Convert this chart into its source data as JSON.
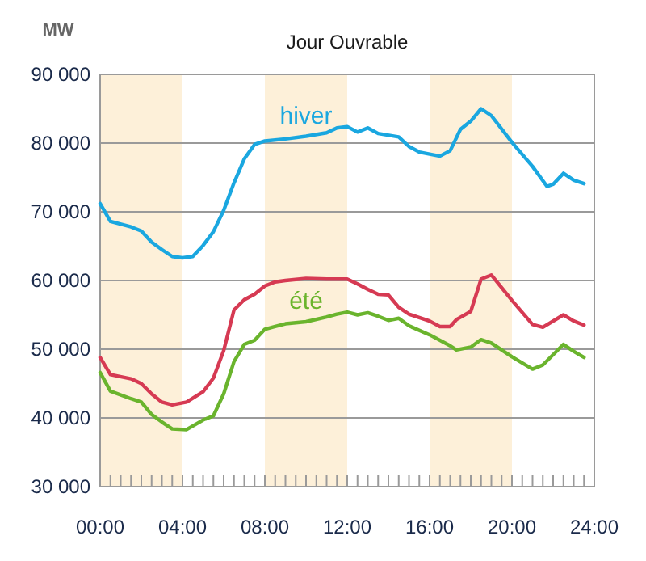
{
  "chart_data": {
    "type": "line",
    "title": "Jour Ouvrable",
    "ylabel": "MW",
    "xlim": [
      0,
      24
    ],
    "ylim": [
      30000,
      90000
    ],
    "xticks": [
      {
        "value": 0,
        "label": "00:00"
      },
      {
        "value": 0.5,
        "label": null
      },
      {
        "value": 1,
        "label": null
      },
      {
        "value": 1.5,
        "label": null
      },
      {
        "value": 2,
        "label": null
      },
      {
        "value": 2.5,
        "label": null
      },
      {
        "value": 3,
        "label": null
      },
      {
        "value": 3.5,
        "label": null
      },
      {
        "value": 4,
        "label": "04:00"
      },
      {
        "value": 4.5,
        "label": null
      },
      {
        "value": 5,
        "label": null
      },
      {
        "value": 5.5,
        "label": null
      },
      {
        "value": 6,
        "label": null
      },
      {
        "value": 6.5,
        "label": null
      },
      {
        "value": 7,
        "label": null
      },
      {
        "value": 7.5,
        "label": null
      },
      {
        "value": 8,
        "label": "08:00"
      },
      {
        "value": 8.5,
        "label": null
      },
      {
        "value": 9,
        "label": null
      },
      {
        "value": 9.5,
        "label": null
      },
      {
        "value": 10,
        "label": null
      },
      {
        "value": 10.5,
        "label": null
      },
      {
        "value": 11,
        "label": null
      },
      {
        "value": 11.5,
        "label": null
      },
      {
        "value": 12,
        "label": "12:00"
      },
      {
        "value": 12.5,
        "label": null
      },
      {
        "value": 13,
        "label": null
      },
      {
        "value": 13.5,
        "label": null
      },
      {
        "value": 14,
        "label": null
      },
      {
        "value": 14.5,
        "label": null
      },
      {
        "value": 15,
        "label": null
      },
      {
        "value": 15.5,
        "label": null
      },
      {
        "value": 16,
        "label": "16:00"
      },
      {
        "value": 16.5,
        "label": null
      },
      {
        "value": 17,
        "label": null
      },
      {
        "value": 17.5,
        "label": null
      },
      {
        "value": 18,
        "label": null
      },
      {
        "value": 18.5,
        "label": null
      },
      {
        "value": 19,
        "label": null
      },
      {
        "value": 19.5,
        "label": null
      },
      {
        "value": 20,
        "label": "20:00"
      },
      {
        "value": 20.5,
        "label": null
      },
      {
        "value": 21,
        "label": null
      },
      {
        "value": 21.5,
        "label": null
      },
      {
        "value": 22,
        "label": null
      },
      {
        "value": 22.5,
        "label": null
      },
      {
        "value": 23,
        "label": null
      },
      {
        "value": 23.5,
        "label": null
      },
      {
        "value": 24,
        "label": "24:00"
      }
    ],
    "yticks": [
      {
        "value": 30000,
        "label": "30 000"
      },
      {
        "value": 40000,
        "label": "40 000"
      },
      {
        "value": 50000,
        "label": "50 000"
      },
      {
        "value": 60000,
        "label": "60 000"
      },
      {
        "value": 70000,
        "label": "70 000"
      },
      {
        "value": 80000,
        "label": "80 000"
      },
      {
        "value": 90000,
        "label": "90 000"
      }
    ],
    "grid": "y",
    "line_style": "solid",
    "bands": [
      {
        "axis": "x",
        "from": 0,
        "to": 4,
        "color": "#fdf0d9"
      },
      {
        "axis": "x",
        "from": 8,
        "to": 12,
        "color": "#fdf0d9"
      },
      {
        "axis": "x",
        "from": 16,
        "to": 20,
        "color": "#fdf0d9"
      }
    ],
    "series": [
      {
        "name": "hiver",
        "color": "#1aa7e0",
        "x": [
          0,
          0.5,
          1.5,
          2,
          2.5,
          3,
          3.5,
          4,
          4.5,
          5,
          5.5,
          6,
          6.5,
          7,
          7.5,
          8,
          9,
          10,
          11,
          11.5,
          12,
          12.5,
          13,
          13.5,
          14.5,
          15,
          15.5,
          16.5,
          17,
          17.5,
          18,
          18.5,
          19,
          20,
          21,
          21.7,
          22,
          22.5,
          23,
          23.5
        ],
        "values": [
          71200,
          68600,
          67800,
          67200,
          65600,
          64500,
          63500,
          63300,
          63500,
          65100,
          67100,
          70200,
          74200,
          77700,
          79800,
          80300,
          80600,
          81000,
          81500,
          82200,
          82400,
          81600,
          82200,
          81400,
          80900,
          79500,
          78700,
          78100,
          78900,
          82000,
          83200,
          85000,
          84000,
          80100,
          76600,
          73700,
          74000,
          75600,
          74600,
          74100
        ]
      },
      {
        "color": "#d63a53",
        "x": [
          0,
          0.5,
          1.5,
          2,
          2.5,
          3,
          3.5,
          4.2,
          5,
          5.5,
          6,
          6.5,
          7,
          7.5,
          8,
          8.5,
          9,
          10,
          11,
          12,
          12.5,
          13,
          13.5,
          14,
          14.5,
          15,
          16,
          16.5,
          17,
          17.3,
          18,
          18.5,
          19,
          20,
          21,
          21.5,
          22.5,
          23,
          23.5
        ],
        "values": [
          48800,
          46300,
          45700,
          45000,
          43500,
          42300,
          41900,
          42300,
          43800,
          45800,
          49800,
          55700,
          57200,
          58000,
          59200,
          59800,
          60000,
          60300,
          60200,
          60200,
          59500,
          58700,
          58000,
          57900,
          56100,
          55100,
          54100,
          53300,
          53300,
          54300,
          55500,
          60200,
          60800,
          57100,
          53600,
          53200,
          55000,
          54100,
          53500
        ]
      },
      {
        "name": "été",
        "color": "#6ab42d",
        "x": [
          0,
          0.5,
          1.5,
          2,
          2.5,
          3,
          3.5,
          4.2,
          5,
          5.5,
          6,
          6.5,
          7,
          7.5,
          8,
          8.5,
          9,
          10,
          11,
          11.5,
          12,
          12.5,
          13,
          13.5,
          14,
          14.5,
          15,
          16,
          17,
          17.3,
          18,
          18.5,
          19,
          20,
          21,
          21.5,
          22.5,
          23,
          23.5
        ],
        "values": [
          46600,
          43900,
          42800,
          42300,
          40500,
          39400,
          38400,
          38300,
          39700,
          40300,
          43500,
          48200,
          50700,
          51300,
          52900,
          53300,
          53700,
          54000,
          54700,
          55100,
          55400,
          55000,
          55300,
          54800,
          54200,
          54500,
          53400,
          52100,
          50500,
          49900,
          50300,
          51400,
          50900,
          48900,
          47100,
          47700,
          50700,
          49700,
          48800
        ]
      }
    ]
  }
}
